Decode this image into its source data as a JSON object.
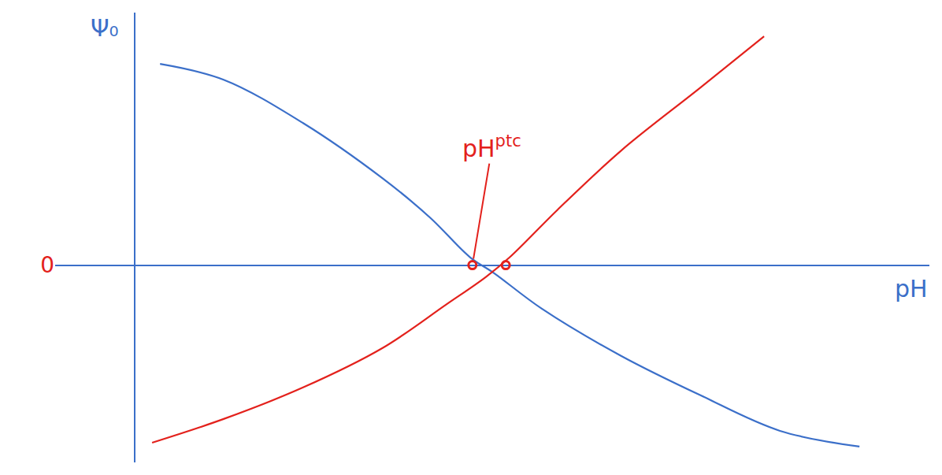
{
  "chart_data": {
    "type": "line",
    "x_label": "pH",
    "y_label": "Ψ₀",
    "xlim": [
      -1,
      10
    ],
    "ylim": [
      -2.5,
      3.2
    ],
    "yticks": [
      0
    ],
    "tick_labels": "y",
    "grid": false,
    "series": [
      {
        "type": "line",
        "color": "#3b6fc9",
        "x": [
          0.32,
          1.12,
          2.12,
          3.12,
          3.72,
          4.22,
          4.52,
          5.12,
          6.12,
          7.12,
          8.12,
          9.12
        ],
        "values": [
          2.55,
          2.35,
          1.8,
          1.1,
          0.6,
          0.1,
          -0.1,
          -0.55,
          -1.15,
          -1.65,
          -2.1,
          -2.3
        ]
      },
      {
        "type": "line",
        "color": "#e3211c",
        "x": [
          0.22,
          1.12,
          2.12,
          3.12,
          3.92,
          4.42,
          4.72,
          5.32,
          6.12,
          7.12,
          7.92
        ],
        "values": [
          -2.25,
          -1.95,
          -1.55,
          -1.05,
          -0.5,
          -0.15,
          0.1,
          0.7,
          1.45,
          2.25,
          2.9
        ]
      },
      {
        "type": "scatter",
        "marker": "circle-open",
        "color": "#e3211c",
        "x": [
          4.25,
          4.67
        ],
        "values": [
          0,
          0
        ]
      }
    ],
    "annotations": [
      {
        "text": "pH",
        "superscript": "ptc",
        "x": 4.25,
        "y": 0,
        "color": "#e3211c"
      }
    ]
  }
}
